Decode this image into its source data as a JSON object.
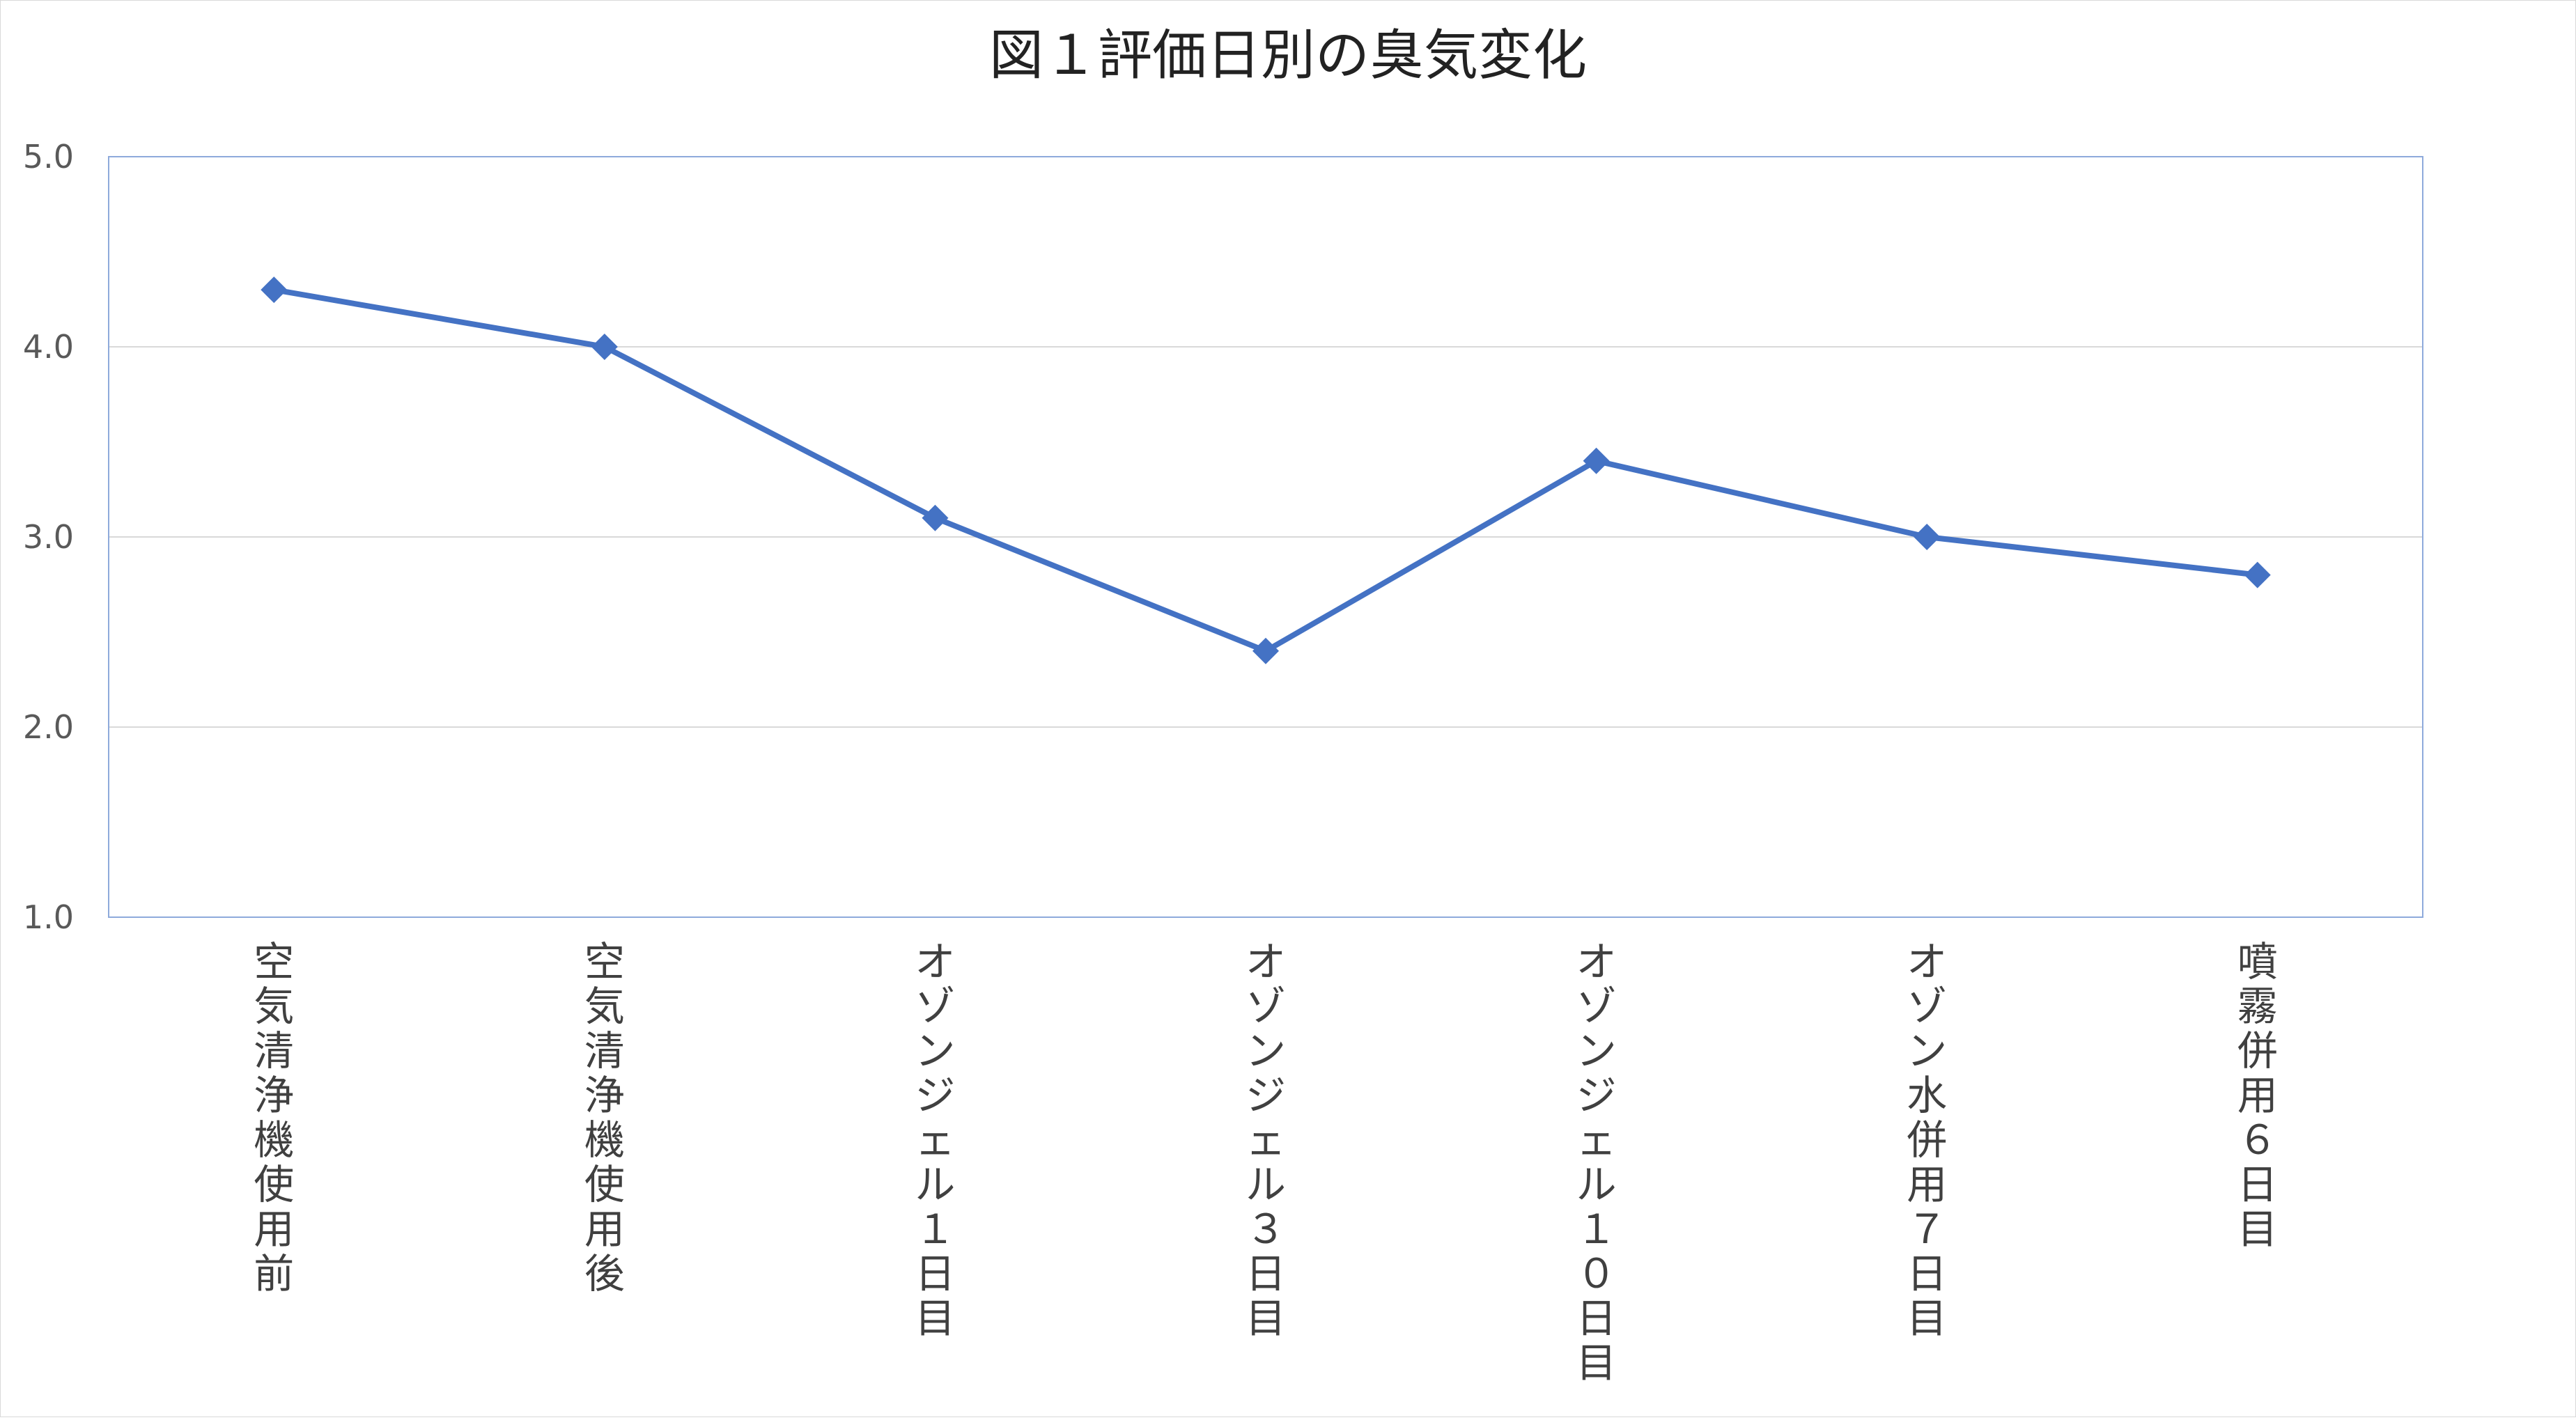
{
  "chart_data": {
    "type": "line",
    "title": "図１評価日別の臭気変化",
    "xlabel": "",
    "ylabel": "",
    "categories": [
      "空気清浄機使用前",
      "空気清浄機使用後",
      "オゾンジェル１日目",
      "オゾンジェル３日目",
      "オゾンジェル１０日目",
      "オゾン水併用７日目",
      "噴霧併用６日目"
    ],
    "series": [
      {
        "values": [
          4.3,
          4.0,
          3.1,
          2.4,
          3.4,
          3.0,
          2.8
        ]
      }
    ],
    "ylim": [
      1.0,
      5.0
    ],
    "yticks": [
      "1.0",
      "2.0",
      "3.0",
      "4.0",
      "5.0"
    ],
    "grid": true,
    "legend": "none",
    "marker": "diamond",
    "series_color": "#4472c4",
    "grid_color": "#d9d9d9",
    "plot_border_color": "#8eaadb"
  }
}
